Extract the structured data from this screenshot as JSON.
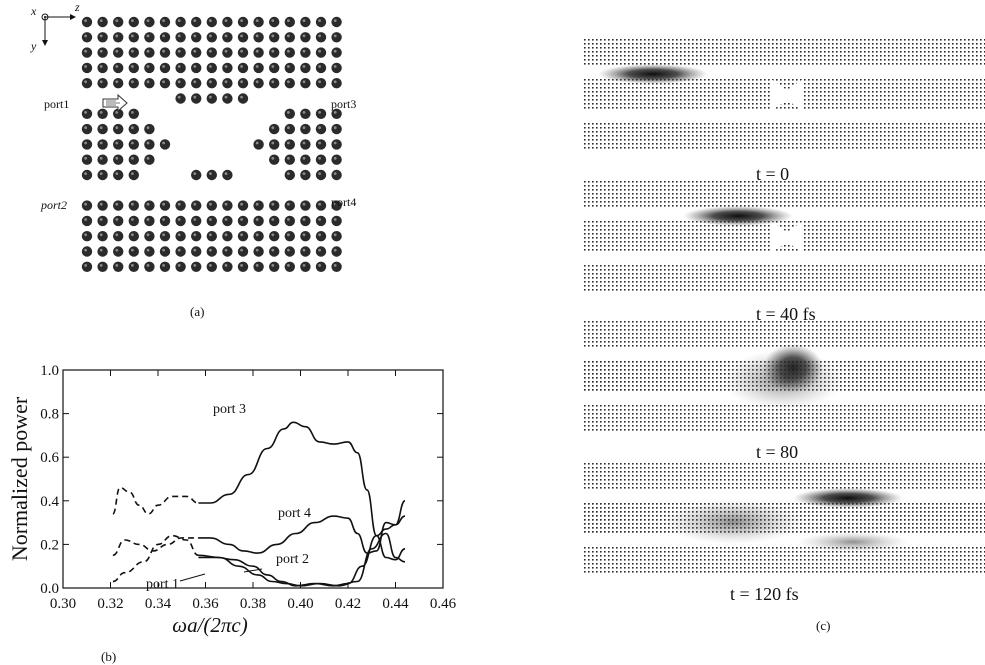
{
  "panel_a": {
    "axis_x": "x",
    "axis_z": "z",
    "axis_y": "y",
    "ports": {
      "port1": "port1",
      "port2": "port2",
      "port3": "port3",
      "port4": "port4"
    },
    "caption": "(a)"
  },
  "panel_b": {
    "caption": "(b)"
  },
  "panel_c": {
    "caption": "(c)",
    "frames": [
      {
        "label": "t = 0",
        "pulses": "incoming pulse in upper-left waveguide"
      },
      {
        "label": "t = 40 fs"
      },
      {
        "label": "t = 80"
      },
      {
        "label": "t = 120 fs"
      }
    ]
  },
  "chart_data": {
    "type": "line",
    "xlabel": "ωa/(2πc)",
    "ylabel": "Normalized power",
    "xlim": [
      0.3,
      0.46
    ],
    "ylim": [
      0.0,
      1.0
    ],
    "xticks": [
      "0.30",
      "0.32",
      "0.34",
      "0.36",
      "0.38",
      "0.40",
      "0.42",
      "0.44",
      "0.46"
    ],
    "yticks": [
      "0.0",
      "0.2",
      "0.4",
      "0.6",
      "0.8",
      "1.0"
    ],
    "series": [
      {
        "name": "port 3",
        "style": "solid",
        "x": [
          0.357,
          0.362,
          0.37,
          0.378,
          0.386,
          0.393,
          0.397,
          0.402,
          0.408,
          0.414,
          0.42,
          0.424,
          0.428,
          0.432,
          0.436,
          0.44,
          0.444
        ],
        "y": [
          0.39,
          0.39,
          0.43,
          0.52,
          0.64,
          0.73,
          0.76,
          0.74,
          0.67,
          0.66,
          0.67,
          0.62,
          0.45,
          0.24,
          0.14,
          0.13,
          0.18
        ]
      },
      {
        "name": "port 4",
        "style": "solid",
        "x": [
          0.357,
          0.362,
          0.37,
          0.376,
          0.382,
          0.39,
          0.398,
          0.406,
          0.414,
          0.42,
          0.424,
          0.428,
          0.432,
          0.436,
          0.44,
          0.444
        ],
        "y": [
          0.23,
          0.23,
          0.2,
          0.17,
          0.16,
          0.2,
          0.25,
          0.3,
          0.33,
          0.32,
          0.25,
          0.16,
          0.17,
          0.3,
          0.29,
          0.33
        ]
      },
      {
        "name": "port 2",
        "style": "solid",
        "x": [
          0.357,
          0.365,
          0.372,
          0.38,
          0.386,
          0.392,
          0.398,
          0.406,
          0.414,
          0.42,
          0.426,
          0.432,
          0.436,
          0.44,
          0.444
        ],
        "y": [
          0.14,
          0.14,
          0.13,
          0.1,
          0.06,
          0.03,
          0.01,
          0.02,
          0.01,
          0.02,
          0.1,
          0.24,
          0.27,
          0.29,
          0.4
        ]
      },
      {
        "name": "port 1",
        "style": "solid",
        "x": [
          0.357,
          0.366,
          0.374,
          0.382,
          0.388,
          0.394,
          0.4,
          0.408,
          0.416,
          0.424,
          0.43,
          0.436,
          0.44,
          0.444
        ],
        "y": [
          0.15,
          0.14,
          0.1,
          0.06,
          0.03,
          0.02,
          0.01,
          0.02,
          0.01,
          0.03,
          0.18,
          0.25,
          0.14,
          0.12
        ]
      },
      {
        "name": "port 3 (low freq)",
        "style": "dashed",
        "x": [
          0.321,
          0.324,
          0.328,
          0.332,
          0.336,
          0.34,
          0.346,
          0.352,
          0.357
        ],
        "y": [
          0.34,
          0.46,
          0.44,
          0.38,
          0.34,
          0.38,
          0.42,
          0.42,
          0.39
        ]
      },
      {
        "name": "port 4 (low freq)",
        "style": "dashed",
        "x": [
          0.321,
          0.326,
          0.332,
          0.338,
          0.344,
          0.35,
          0.357
        ],
        "y": [
          0.15,
          0.22,
          0.2,
          0.17,
          0.2,
          0.23,
          0.23
        ]
      },
      {
        "name": "port 1 (low freq)",
        "style": "dashed",
        "x": [
          0.321,
          0.326,
          0.334,
          0.34,
          0.346,
          0.352,
          0.357
        ],
        "y": [
          0.03,
          0.07,
          0.12,
          0.2,
          0.24,
          0.22,
          0.15
        ]
      }
    ],
    "annotations": [
      "port 3",
      "port 4",
      "port 2",
      "port 1"
    ]
  }
}
